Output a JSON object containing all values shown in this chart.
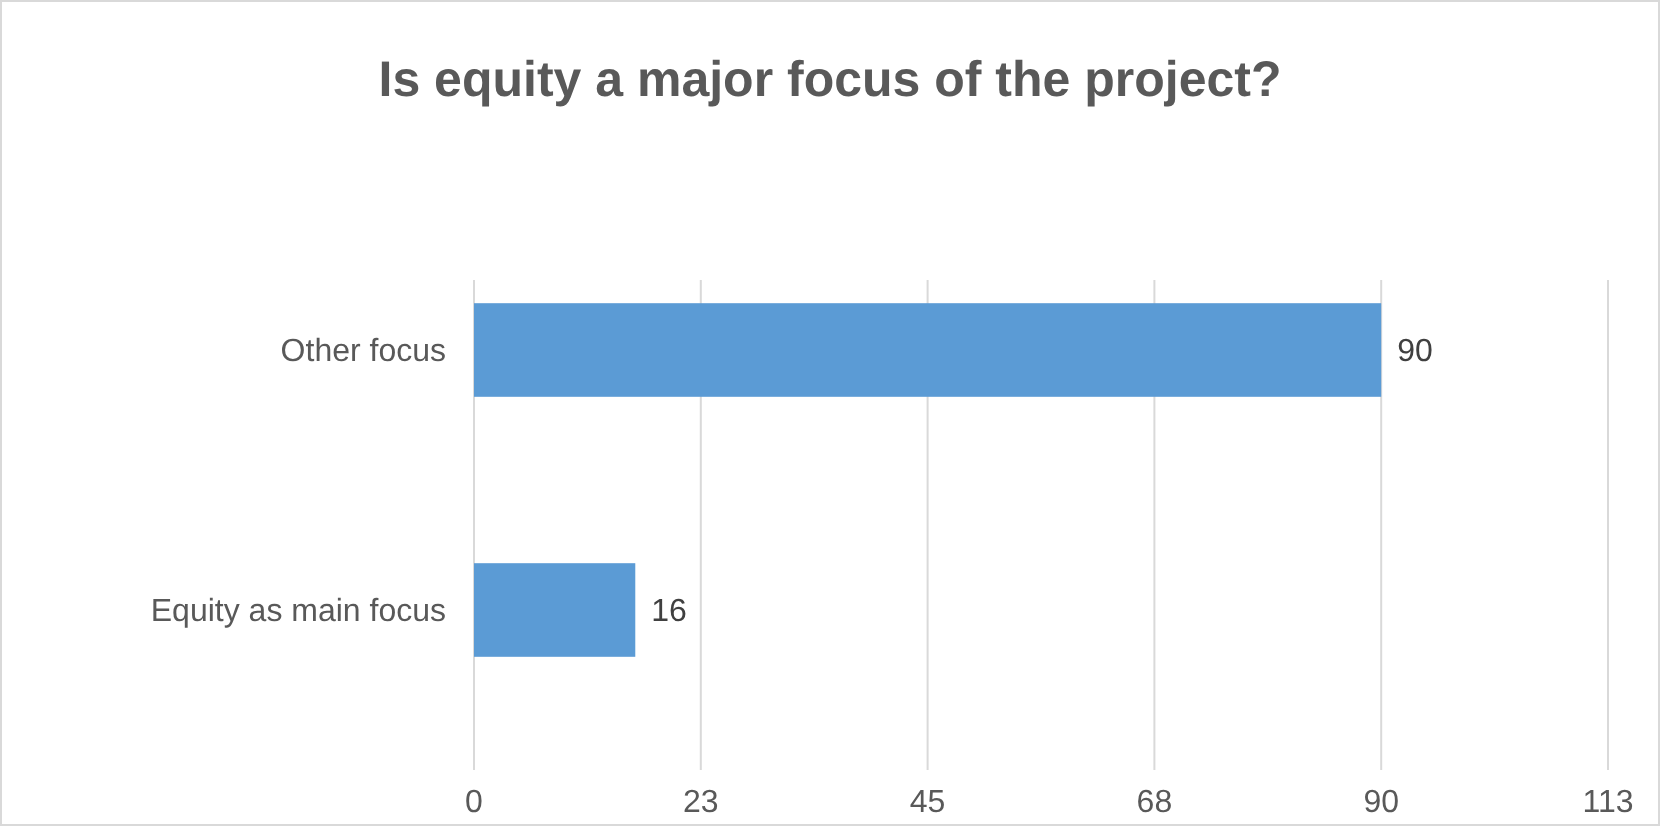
{
  "chart_data": {
    "type": "bar",
    "orientation": "horizontal",
    "title": "Is equity a major focus of the project?",
    "categories": [
      "Other focus",
      "Equity as main focus"
    ],
    "values": [
      90,
      16
    ],
    "color": "#5b9bd5",
    "xlim": [
      0,
      112.5
    ],
    "xticks": [
      0,
      {
        "value": 22.5,
        "label": "23"
      },
      45,
      {
        "value": 67.5,
        "label": "68"
      },
      90,
      {
        "value": 112.5,
        "label": "113"
      }
    ],
    "grid": "x",
    "data_labels": true
  }
}
